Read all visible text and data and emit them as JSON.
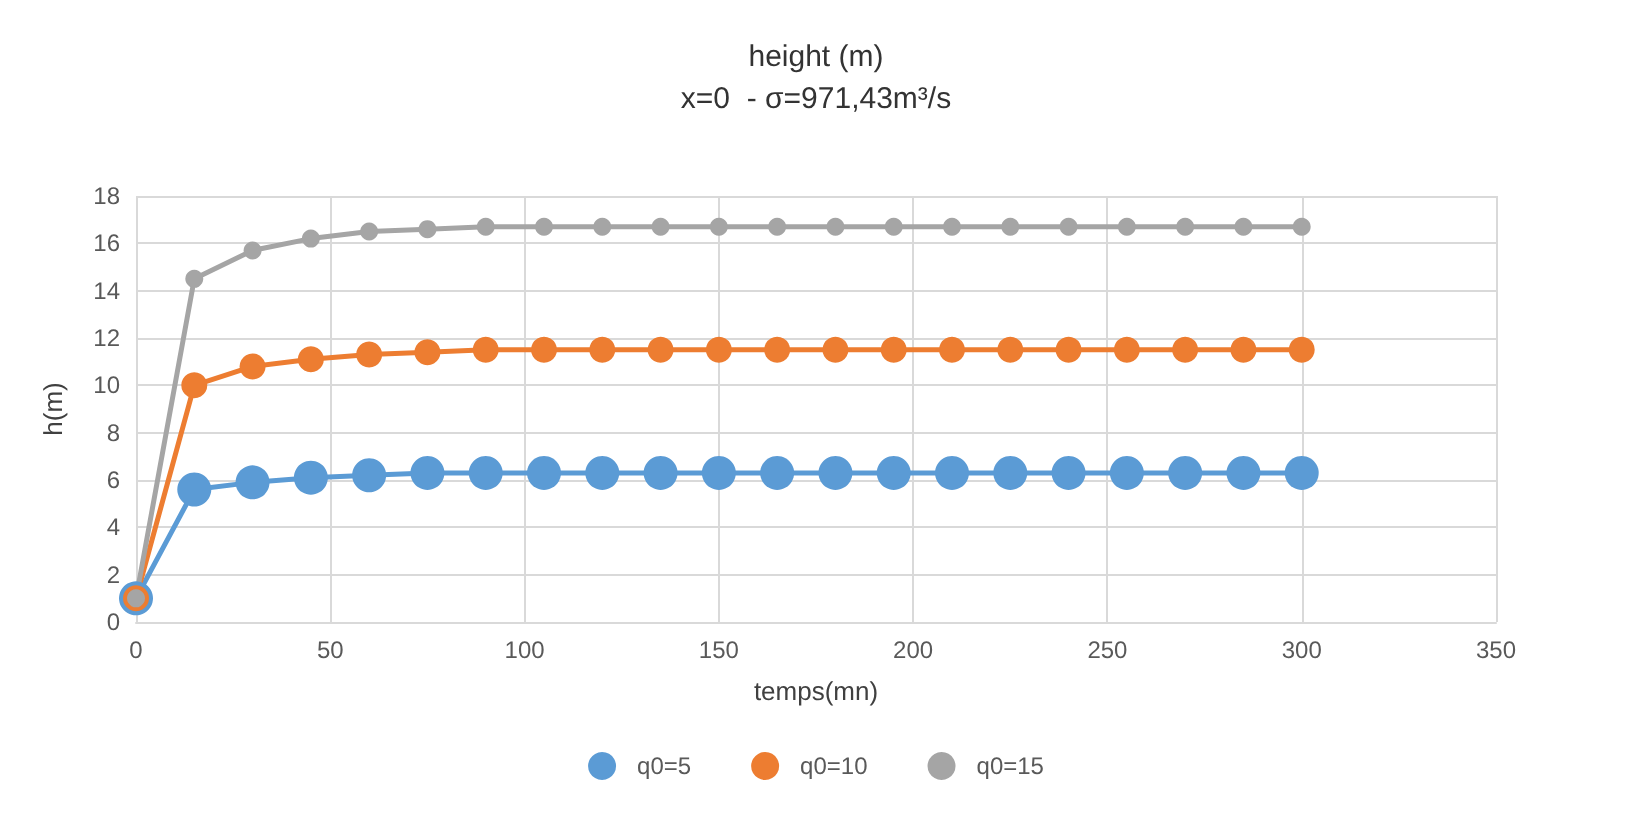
{
  "chart_data": {
    "type": "line",
    "title": "height (m)",
    "subtitle": "x=0  - σ=971,43m³/s",
    "xlabel": "temps(mn)",
    "ylabel": "h(m)",
    "x": [
      0,
      15,
      30,
      45,
      60,
      75,
      90,
      105,
      120,
      135,
      150,
      165,
      180,
      195,
      210,
      225,
      240,
      255,
      270,
      285,
      300
    ],
    "series": [
      {
        "name": "q0=5",
        "color": "#5b9bd5",
        "values": [
          1,
          5.6,
          5.9,
          6.1,
          6.2,
          6.3,
          6.3,
          6.3,
          6.3,
          6.3,
          6.3,
          6.3,
          6.3,
          6.3,
          6.3,
          6.3,
          6.3,
          6.3,
          6.3,
          6.3,
          6.3
        ]
      },
      {
        "name": "q0=10",
        "color": "#ed7d31",
        "values": [
          1,
          10.0,
          10.8,
          11.1,
          11.3,
          11.4,
          11.5,
          11.5,
          11.5,
          11.5,
          11.5,
          11.5,
          11.5,
          11.5,
          11.5,
          11.5,
          11.5,
          11.5,
          11.5,
          11.5,
          11.5
        ]
      },
      {
        "name": "q0=15",
        "color": "#a5a5a5",
        "values": [
          1,
          14.5,
          15.7,
          16.2,
          16.5,
          16.6,
          16.7,
          16.7,
          16.7,
          16.7,
          16.7,
          16.7,
          16.7,
          16.7,
          16.7,
          16.7,
          16.7,
          16.7,
          16.7,
          16.7,
          16.7
        ]
      }
    ],
    "xlim": [
      0,
      350
    ],
    "xticks": [
      0,
      50,
      100,
      150,
      200,
      250,
      300,
      350
    ],
    "ylim": [
      0,
      18
    ],
    "yticks": [
      0,
      2,
      4,
      6,
      8,
      10,
      12,
      14,
      16,
      18
    ],
    "grid": true,
    "legend": "bottom",
    "marker": "circle",
    "line_style": "solid"
  }
}
